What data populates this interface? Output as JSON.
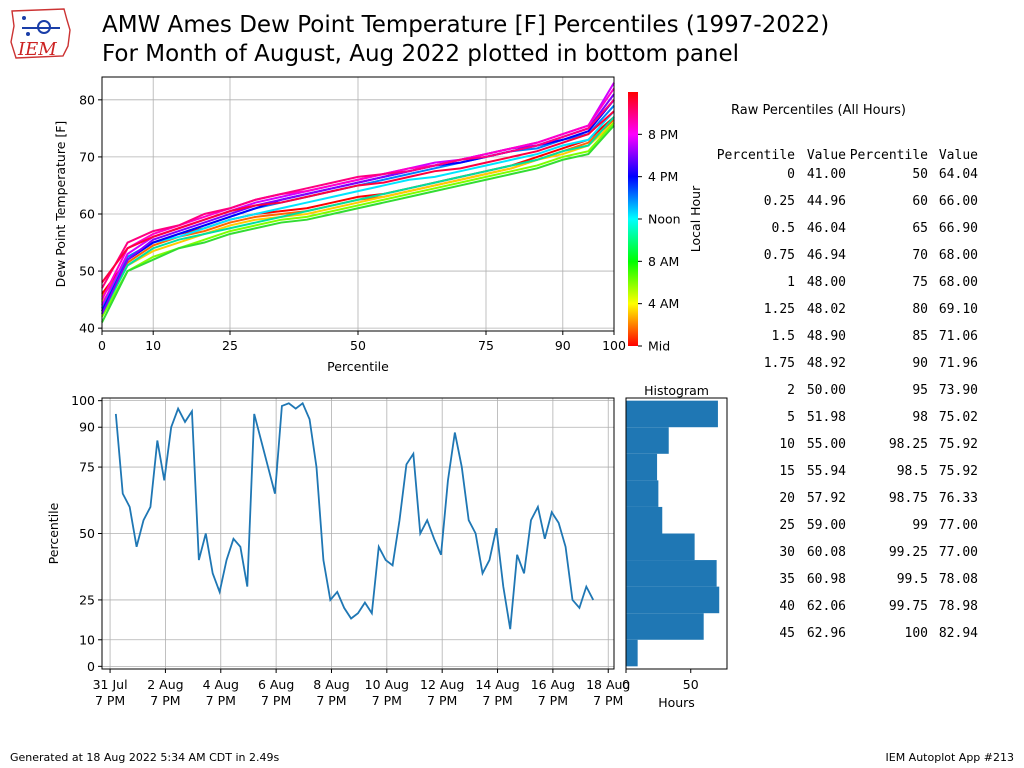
{
  "header": {
    "title_line1": "AMW Ames Dew Point Temperature [F] Percentiles (1997-2022)",
    "title_line2": "For Month of August, Aug 2022 plotted in bottom panel",
    "logo_text": "IEM"
  },
  "raw_table": {
    "title": "Raw Percentiles (All Hours)",
    "headers": [
      "Percentile",
      "Value",
      "Percentile",
      "Value"
    ],
    "rows": [
      [
        "0",
        "41.00",
        "50",
        "64.04"
      ],
      [
        "0.25",
        "44.96",
        "60",
        "66.00"
      ],
      [
        "0.5",
        "46.04",
        "65",
        "66.90"
      ],
      [
        "0.75",
        "46.94",
        "70",
        "68.00"
      ],
      [
        "1",
        "48.00",
        "75",
        "68.00"
      ],
      [
        "1.25",
        "48.02",
        "80",
        "69.10"
      ],
      [
        "1.5",
        "48.90",
        "85",
        "71.06"
      ],
      [
        "1.75",
        "48.92",
        "90",
        "71.96"
      ],
      [
        "2",
        "50.00",
        "95",
        "73.90"
      ],
      [
        "5",
        "51.98",
        "98",
        "75.02"
      ],
      [
        "10",
        "55.00",
        "98.25",
        "75.92"
      ],
      [
        "15",
        "55.94",
        "98.5",
        "75.92"
      ],
      [
        "20",
        "57.92",
        "98.75",
        "76.33"
      ],
      [
        "25",
        "59.00",
        "99",
        "77.00"
      ],
      [
        "30",
        "60.08",
        "99.25",
        "77.00"
      ],
      [
        "35",
        "60.98",
        "99.5",
        "78.08"
      ],
      [
        "40",
        "62.06",
        "99.75",
        "78.98"
      ],
      [
        "45",
        "62.96",
        "100",
        "82.94"
      ]
    ]
  },
  "footer": {
    "generated": "Generated at 18 Aug 2022 5:34 AM CDT in 2.49s",
    "app": "IEM Autoplot App #213"
  },
  "chart_data": [
    {
      "type": "line",
      "xlabel": "Percentile",
      "ylabel": "Dew Point Temperature [F]",
      "xlim": [
        0,
        100
      ],
      "ylim": [
        39.5,
        84
      ],
      "xticks": [
        0,
        10,
        25,
        50,
        75,
        90,
        100
      ],
      "yticks": [
        40,
        50,
        60,
        70,
        80
      ],
      "grid": true,
      "x": [
        0,
        5,
        10,
        15,
        20,
        25,
        30,
        35,
        40,
        45,
        50,
        55,
        60,
        65,
        70,
        75,
        80,
        85,
        90,
        95,
        100
      ],
      "series": [
        {
          "hour": 0,
          "color": "#ff0000",
          "values": [
            46,
            52,
            55,
            56.5,
            57.5,
            59,
            60,
            60.5,
            61,
            62,
            63,
            63.5,
            64.5,
            65.5,
            66.5,
            67.5,
            68.5,
            70,
            71.5,
            73,
            77
          ]
        },
        {
          "hour": 2,
          "color": "#ff6600",
          "values": [
            45.5,
            51.5,
            54.5,
            56,
            57,
            58.5,
            59.5,
            60,
            60.5,
            61.5,
            62.5,
            63,
            64,
            65,
            66,
            67,
            68,
            69.5,
            71,
            72.5,
            76.5
          ]
        },
        {
          "hour": 4,
          "color": "#ffcc00",
          "values": [
            44.5,
            51,
            53.5,
            55,
            56.5,
            58,
            59,
            59.5,
            60,
            61,
            62,
            63,
            64,
            65,
            66,
            67,
            68,
            69.5,
            70.5,
            72,
            76
          ]
        },
        {
          "hour": 6,
          "color": "#80ff00",
          "values": [
            42,
            50,
            52.5,
            54,
            55.5,
            57,
            58,
            59,
            59.5,
            60.5,
            61.5,
            62.5,
            63.5,
            64.5,
            65.5,
            66.5,
            67.5,
            68.5,
            70,
            71,
            76
          ]
        },
        {
          "hour": 8,
          "color": "#33dd33",
          "values": [
            41,
            50,
            52,
            54,
            55,
            56.5,
            57.5,
            58.5,
            59,
            60,
            61,
            62,
            63,
            64,
            65,
            66,
            67,
            68,
            69.5,
            70.5,
            75.5
          ]
        },
        {
          "hour": 10,
          "color": "#00e0a0",
          "values": [
            42.5,
            51,
            54,
            55.5,
            56.5,
            57.5,
            58.5,
            59.5,
            60.5,
            61.5,
            62.5,
            63.5,
            64.5,
            65.5,
            66.5,
            67.5,
            68.5,
            69.5,
            71,
            72,
            77
          ]
        },
        {
          "hour": 12,
          "color": "#00e5ff",
          "values": [
            43,
            52,
            55,
            56,
            57.5,
            59,
            60,
            61,
            62,
            63,
            64,
            65,
            66,
            66.5,
            67.5,
            68.5,
            69.5,
            70.5,
            72,
            73,
            78
          ]
        },
        {
          "hour": 14,
          "color": "#0080ff",
          "values": [
            43.5,
            52.5,
            55,
            56.5,
            58,
            59.5,
            61,
            62,
            63,
            64,
            65,
            66,
            67,
            68,
            69,
            70,
            71,
            71.5,
            73,
            74,
            79
          ]
        },
        {
          "hour": 16,
          "color": "#0000ff",
          "values": [
            43,
            52,
            55,
            56.5,
            58,
            59.5,
            61,
            62.5,
            63.5,
            64.5,
            65.5,
            66.5,
            67.5,
            68.5,
            69,
            70,
            71,
            72,
            73,
            74.5,
            80
          ]
        },
        {
          "hour": 18,
          "color": "#8000ff",
          "values": [
            42.5,
            52,
            55.5,
            57,
            58.5,
            60,
            61.5,
            62.5,
            63.5,
            64.5,
            65.5,
            66.5,
            67.5,
            68.5,
            69.5,
            70.5,
            71.5,
            72,
            73.5,
            75,
            81
          ]
        },
        {
          "hour": 20,
          "color": "#d000ff",
          "values": [
            44,
            53,
            56,
            57.5,
            59,
            60.5,
            62,
            63,
            64,
            65,
            66,
            67,
            68,
            69,
            69.5,
            70.5,
            71.5,
            72.5,
            74,
            75.5,
            83
          ]
        },
        {
          "hour": 21,
          "color": "#ff00cc",
          "values": [
            45,
            54,
            56.5,
            58,
            59.5,
            61,
            62.5,
            63.5,
            64,
            65,
            66,
            67,
            68,
            68.5,
            69.5,
            70.5,
            71.5,
            72.5,
            74,
            75.5,
            82
          ]
        },
        {
          "hour": 22,
          "color": "#ff0080",
          "values": [
            47,
            55,
            57,
            58,
            60,
            61,
            62.5,
            63.5,
            64.5,
            65.5,
            66.5,
            67,
            67.5,
            68.5,
            69.5,
            70,
            71,
            72,
            73.5,
            75,
            80
          ]
        },
        {
          "hour": 23,
          "color": "#ff0040",
          "values": [
            48,
            54,
            56,
            57.5,
            59,
            60.5,
            61.5,
            62,
            63,
            64,
            65,
            65.5,
            66.5,
            67.5,
            68,
            69,
            70,
            71,
            72.5,
            74,
            78
          ]
        }
      ]
    },
    {
      "type": "colorbar",
      "label": "Local Hour",
      "ticks": [
        {
          "value": 0,
          "label": "Mid"
        },
        {
          "value": 4,
          "label": "4 AM"
        },
        {
          "value": 8,
          "label": "8 AM"
        },
        {
          "value": 12,
          "label": "Noon"
        },
        {
          "value": 16,
          "label": "4 PM"
        },
        {
          "value": 20,
          "label": "8 PM"
        }
      ],
      "range": [
        0,
        24
      ]
    },
    {
      "type": "line",
      "xlabel": "",
      "ylabel": "Percentile",
      "ylim": [
        -1,
        101
      ],
      "yticks": [
        0,
        10,
        25,
        50,
        75,
        90,
        100
      ],
      "grid": true,
      "xlim": [
        "2022-07-31T12:00",
        "2022-08-19T00:00"
      ],
      "xticks": [
        {
          "t": "2022-07-31T19:00",
          "label": "31 Jul\n7 PM"
        },
        {
          "t": "2022-08-02T19:00",
          "label": "2 Aug\n7 PM"
        },
        {
          "t": "2022-08-04T19:00",
          "label": "4 Aug\n7 PM"
        },
        {
          "t": "2022-08-06T19:00",
          "label": "6 Aug\n7 PM"
        },
        {
          "t": "2022-08-08T19:00",
          "label": "8 Aug\n7 PM"
        },
        {
          "t": "2022-08-10T19:00",
          "label": "10 Aug\n7 PM"
        },
        {
          "t": "2022-08-12T19:00",
          "label": "12 Aug\n7 PM"
        },
        {
          "t": "2022-08-14T19:00",
          "label": "14 Aug\n7 PM"
        },
        {
          "t": "2022-08-16T19:00",
          "label": "16 Aug\n7 PM"
        },
        {
          "t": "2022-08-18T19:00",
          "label": "18 Aug\n7 PM"
        }
      ],
      "color": "#1f77b4",
      "series": [
        {
          "x": [
            "2022-08-01T00:00",
            "2022-08-01T06:00",
            "2022-08-01T12:00",
            "2022-08-01T18:00",
            "2022-08-02T00:00",
            "2022-08-02T06:00",
            "2022-08-02T12:00",
            "2022-08-02T18:00",
            "2022-08-03T00:00",
            "2022-08-03T06:00",
            "2022-08-03T12:00",
            "2022-08-03T18:00",
            "2022-08-04T00:00",
            "2022-08-04T06:00",
            "2022-08-04T12:00",
            "2022-08-04T18:00",
            "2022-08-05T00:00",
            "2022-08-05T06:00",
            "2022-08-05T12:00",
            "2022-08-05T18:00",
            "2022-08-06T00:00",
            "2022-08-06T06:00",
            "2022-08-06T12:00",
            "2022-08-06T18:00",
            "2022-08-07T00:00",
            "2022-08-07T06:00",
            "2022-08-07T12:00",
            "2022-08-07T18:00",
            "2022-08-08T00:00",
            "2022-08-08T06:00",
            "2022-08-08T12:00",
            "2022-08-08T18:00",
            "2022-08-09T00:00",
            "2022-08-09T06:00",
            "2022-08-09T12:00",
            "2022-08-09T18:00",
            "2022-08-10T00:00",
            "2022-08-10T06:00",
            "2022-08-10T12:00",
            "2022-08-10T18:00",
            "2022-08-11T00:00",
            "2022-08-11T06:00",
            "2022-08-11T12:00",
            "2022-08-11T18:00",
            "2022-08-12T00:00",
            "2022-08-12T06:00",
            "2022-08-12T12:00",
            "2022-08-12T18:00",
            "2022-08-13T00:00",
            "2022-08-13T06:00",
            "2022-08-13T12:00",
            "2022-08-13T18:00",
            "2022-08-14T00:00",
            "2022-08-14T06:00",
            "2022-08-14T12:00",
            "2022-08-14T18:00",
            "2022-08-15T00:00",
            "2022-08-15T06:00",
            "2022-08-15T12:00",
            "2022-08-15T18:00",
            "2022-08-16T00:00",
            "2022-08-16T06:00",
            "2022-08-16T12:00",
            "2022-08-16T18:00",
            "2022-08-17T00:00",
            "2022-08-17T06:00",
            "2022-08-17T12:00",
            "2022-08-17T18:00",
            "2022-08-18T00:00",
            "2022-08-18T06:00"
          ],
          "values": [
            95,
            65,
            60,
            45,
            55,
            60,
            85,
            70,
            90,
            97,
            92,
            96,
            40,
            50,
            35,
            28,
            40,
            48,
            45,
            30,
            95,
            85,
            75,
            65,
            98,
            99,
            97,
            99,
            93,
            75,
            40,
            25,
            28,
            22,
            18,
            20,
            24,
            20,
            45,
            40,
            38,
            55,
            76,
            80,
            50,
            55,
            48,
            42,
            70,
            88,
            75,
            55,
            50,
            35,
            40,
            52,
            30,
            14,
            42,
            35,
            55,
            60,
            48,
            58,
            54,
            45,
            25,
            22,
            30,
            25
          ]
        }
      ]
    },
    {
      "type": "bar",
      "orientation": "horizontal",
      "title": "Histogram",
      "xlabel": "Hours",
      "xlim": [
        0,
        78
      ],
      "xticks": [
        0,
        50
      ],
      "ylim": [
        -1,
        101
      ],
      "color": "#1f77b4",
      "bins": [
        [
          0,
          10
        ],
        [
          10,
          20
        ],
        [
          20,
          30
        ],
        [
          30,
          40
        ],
        [
          40,
          50
        ],
        [
          50,
          60
        ],
        [
          60,
          70
        ],
        [
          70,
          80
        ],
        [
          80,
          90
        ],
        [
          90,
          100
        ]
      ],
      "values": [
        9,
        60,
        72,
        70,
        53,
        28,
        25,
        24,
        33,
        71
      ]
    }
  ]
}
